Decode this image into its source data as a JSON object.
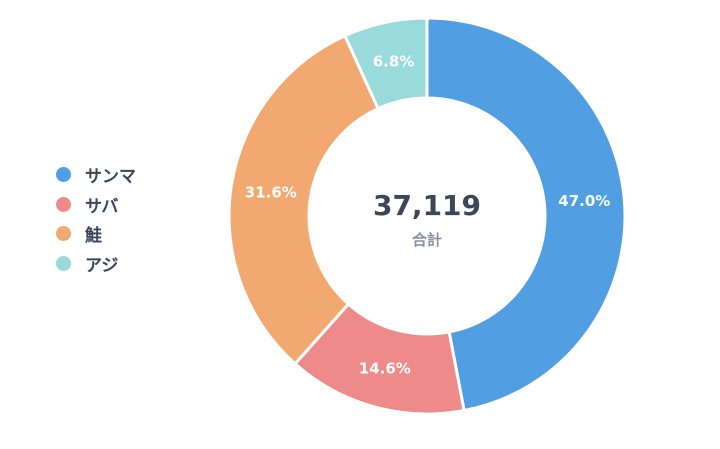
{
  "chart_data": {
    "type": "pie",
    "variant": "donut",
    "title": "",
    "total_label": "37,119",
    "total_caption": "合計",
    "categories": [
      "サンマ",
      "サバ",
      "鮭",
      "アジ"
    ],
    "values": [
      47.0,
      14.6,
      31.6,
      6.8
    ],
    "value_labels": [
      "47.0%",
      "14.6%",
      "31.6%",
      "6.8%"
    ],
    "colors": [
      "#519ee3",
      "#ef8a8b",
      "#f2a871",
      "#99dadb"
    ],
    "start_angle_deg": 0,
    "direction": "clockwise",
    "legend": "left"
  }
}
